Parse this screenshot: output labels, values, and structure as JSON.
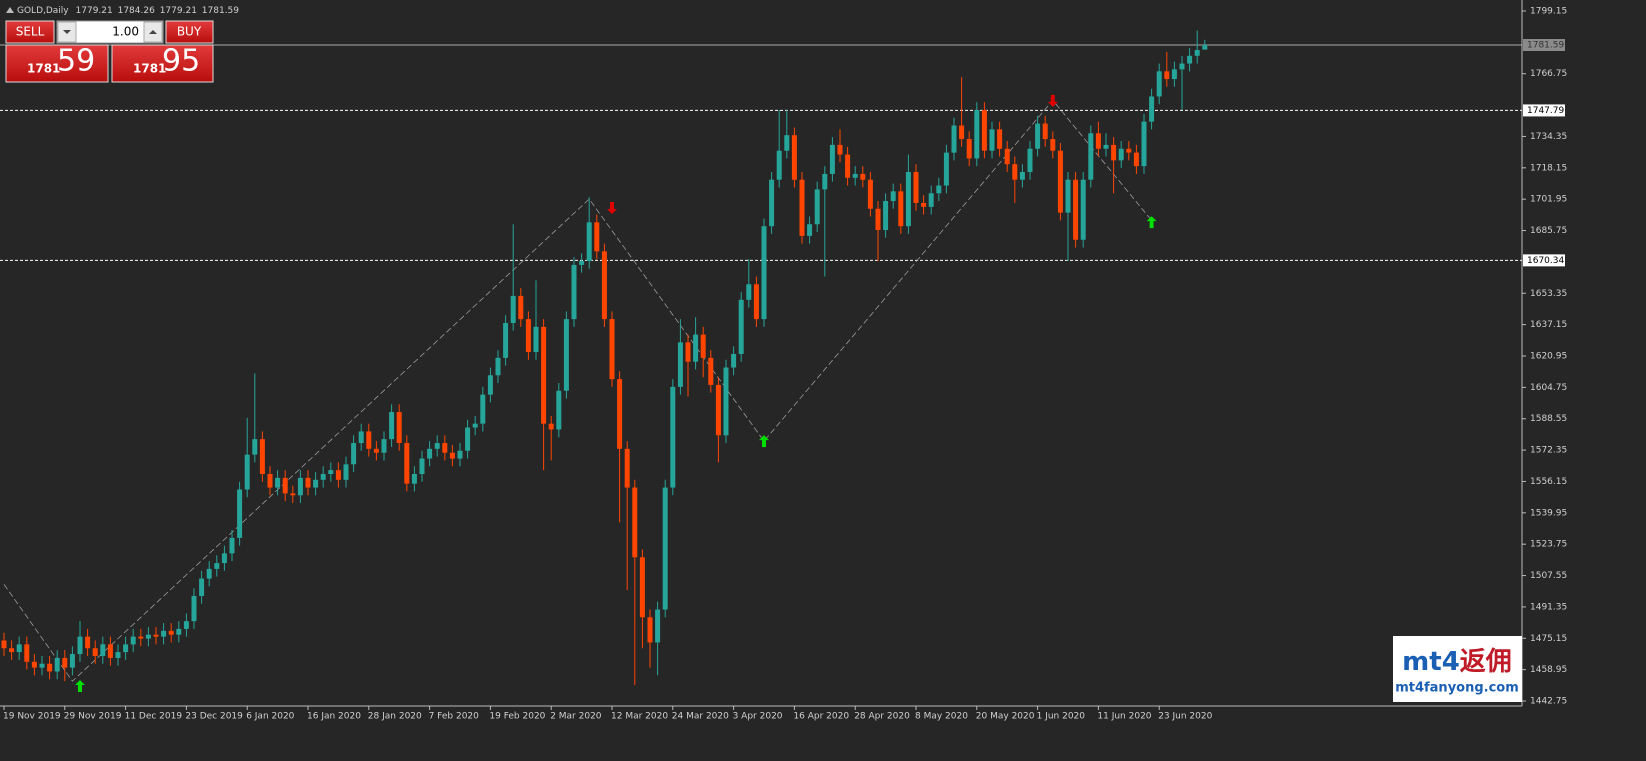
{
  "chart_data": {
    "type": "candlestick",
    "symbol": "GOLD,Daily",
    "up_color": "#26a69a",
    "down_color": "#ff4500",
    "ylim": [
      1440.17,
      1804.83
    ],
    "yticks": [
      1799.15,
      1766.75,
      1734.35,
      1718.15,
      1701.95,
      1685.75,
      1653.35,
      1637.15,
      1620.95,
      1604.75,
      1588.55,
      1572.35,
      1556.15,
      1539.95,
      1523.75,
      1507.55,
      1491.35,
      1475.15,
      1458.95,
      1442.75
    ],
    "categories": [
      "19 Nov 2019",
      null,
      null,
      null,
      null,
      null,
      null,
      null,
      "29 Nov 2019",
      null,
      null,
      null,
      null,
      null,
      null,
      null,
      "11 Dec 2019",
      null,
      null,
      null,
      null,
      null,
      null,
      null,
      "23 Dec 2019",
      null,
      null,
      null,
      null,
      null,
      null,
      null,
      "6 Jan 2020",
      null,
      null,
      null,
      null,
      null,
      null,
      null,
      "16 Jan 2020",
      null,
      null,
      null,
      null,
      null,
      null,
      null,
      "28 Jan 2020",
      null,
      null,
      null,
      null,
      null,
      null,
      null,
      "7 Feb 2020",
      null,
      null,
      null,
      null,
      null,
      null,
      null,
      "19 Feb 2020",
      null,
      null,
      null,
      null,
      null,
      null,
      null,
      "2 Mar 2020",
      null,
      null,
      null,
      null,
      null,
      null,
      null,
      "12 Mar 2020",
      null,
      null,
      null,
      null,
      null,
      null,
      null,
      "24 Mar 2020",
      null,
      null,
      null,
      null,
      null,
      null,
      null,
      "3 Apr 2020",
      null,
      null,
      null,
      null,
      null,
      null,
      null,
      "16 Apr 2020",
      null,
      null,
      null,
      null,
      null,
      null,
      null,
      "28 Apr 2020",
      null,
      null,
      null,
      null,
      null,
      null,
      null,
      "8 May 2020",
      null,
      null,
      null,
      null,
      null,
      null,
      null,
      "20 May 2020",
      null,
      null,
      null,
      null,
      null,
      null,
      null,
      "1 Jun 2020",
      null,
      null,
      null,
      null,
      null,
      null,
      null,
      "11 Jun 2020",
      null,
      null,
      null,
      null,
      null,
      null,
      null,
      "23 Jun 2020",
      null,
      null,
      null,
      null,
      null,
      null
    ],
    "candles": [
      [
        1474,
        1478,
        1466,
        1470
      ],
      [
        1470,
        1474,
        1464,
        1468
      ],
      [
        1468,
        1476,
        1464,
        1472
      ],
      [
        1472,
        1476,
        1459,
        1463
      ],
      [
        1463,
        1467,
        1456,
        1460
      ],
      [
        1460,
        1466,
        1456,
        1462
      ],
      [
        1462,
        1466,
        1454,
        1458
      ],
      [
        1458,
        1469,
        1454,
        1465
      ],
      [
        1465,
        1469,
        1453,
        1460
      ],
      [
        1460,
        1471,
        1456,
        1467
      ],
      [
        1467,
        1484,
        1463,
        1476
      ],
      [
        1476,
        1480,
        1466,
        1470
      ],
      [
        1470,
        1474,
        1462,
        1466
      ],
      [
        1466,
        1476,
        1462,
        1472
      ],
      [
        1472,
        1476,
        1461,
        1465
      ],
      [
        1465,
        1472,
        1461,
        1468
      ],
      [
        1468,
        1476,
        1464,
        1472
      ],
      [
        1472,
        1480,
        1468,
        1476
      ],
      [
        1476,
        1480,
        1471,
        1475
      ],
      [
        1475,
        1481,
        1471,
        1477
      ],
      [
        1477,
        1481,
        1472,
        1476
      ],
      [
        1476,
        1483,
        1472,
        1479
      ],
      [
        1479,
        1483,
        1473,
        1477
      ],
      [
        1477,
        1484,
        1473,
        1480
      ],
      [
        1480,
        1488,
        1476,
        1484
      ],
      [
        1484,
        1501,
        1480,
        1497
      ],
      [
        1497,
        1510,
        1493,
        1506
      ],
      [
        1506,
        1515,
        1502,
        1511
      ],
      [
        1511,
        1518,
        1507,
        1514
      ],
      [
        1514,
        1523,
        1510,
        1519
      ],
      [
        1519,
        1531,
        1515,
        1527
      ],
      [
        1527,
        1556,
        1523,
        1552
      ],
      [
        1552,
        1589,
        1548,
        1570
      ],
      [
        1570,
        1612,
        1566,
        1578
      ],
      [
        1578,
        1582,
        1556,
        1560
      ],
      [
        1560,
        1564,
        1549,
        1553
      ],
      [
        1553,
        1562,
        1549,
        1558
      ],
      [
        1558,
        1562,
        1546,
        1550
      ],
      [
        1550,
        1554,
        1545,
        1549
      ],
      [
        1549,
        1562,
        1545,
        1558
      ],
      [
        1558,
        1562,
        1549,
        1553
      ],
      [
        1553,
        1561,
        1549,
        1557
      ],
      [
        1557,
        1564,
        1553,
        1560
      ],
      [
        1560,
        1566,
        1556,
        1562
      ],
      [
        1562,
        1566,
        1553,
        1557
      ],
      [
        1557,
        1569,
        1553,
        1565
      ],
      [
        1565,
        1580,
        1561,
        1576
      ],
      [
        1576,
        1586,
        1572,
        1582
      ],
      [
        1582,
        1586,
        1569,
        1573
      ],
      [
        1573,
        1577,
        1567,
        1571
      ],
      [
        1571,
        1582,
        1567,
        1578
      ],
      [
        1578,
        1596,
        1574,
        1592
      ],
      [
        1592,
        1596,
        1572,
        1576
      ],
      [
        1576,
        1580,
        1551,
        1555
      ],
      [
        1555,
        1564,
        1551,
        1560
      ],
      [
        1560,
        1572,
        1556,
        1568
      ],
      [
        1568,
        1577,
        1564,
        1573
      ],
      [
        1573,
        1580,
        1569,
        1576
      ],
      [
        1576,
        1580,
        1567,
        1571
      ],
      [
        1571,
        1575,
        1564,
        1568
      ],
      [
        1568,
        1576,
        1564,
        1572
      ],
      [
        1572,
        1588,
        1568,
        1584
      ],
      [
        1584,
        1590,
        1580,
        1586
      ],
      [
        1586,
        1605,
        1582,
        1601
      ],
      [
        1601,
        1615,
        1597,
        1611
      ],
      [
        1611,
        1624,
        1607,
        1620
      ],
      [
        1620,
        1642,
        1616,
        1638
      ],
      [
        1638,
        1689,
        1634,
        1652
      ],
      [
        1652,
        1656,
        1636,
        1640
      ],
      [
        1640,
        1644,
        1619,
        1623
      ],
      [
        1623,
        1660,
        1619,
        1636
      ],
      [
        1636,
        1640,
        1562,
        1586
      ],
      [
        1586,
        1590,
        1567,
        1583
      ],
      [
        1583,
        1607,
        1579,
        1603
      ],
      [
        1603,
        1644,
        1599,
        1640
      ],
      [
        1640,
        1672,
        1636,
        1668
      ],
      [
        1668,
        1674,
        1664,
        1670
      ],
      [
        1670,
        1703,
        1666,
        1690
      ],
      [
        1690,
        1694,
        1671,
        1675
      ],
      [
        1675,
        1679,
        1636,
        1640
      ],
      [
        1640,
        1644,
        1605,
        1609
      ],
      [
        1609,
        1613,
        1535,
        1573
      ],
      [
        1573,
        1577,
        1500,
        1553
      ],
      [
        1553,
        1557,
        1451,
        1517
      ],
      [
        1517,
        1521,
        1470,
        1486
      ],
      [
        1486,
        1490,
        1460,
        1473
      ],
      [
        1473,
        1494,
        1456,
        1490
      ],
      [
        1490,
        1557,
        1486,
        1553
      ],
      [
        1553,
        1609,
        1549,
        1605
      ],
      [
        1605,
        1640,
        1601,
        1628
      ],
      [
        1628,
        1632,
        1600,
        1618
      ],
      [
        1618,
        1641,
        1614,
        1632
      ],
      [
        1632,
        1636,
        1610,
        1620
      ],
      [
        1620,
        1624,
        1602,
        1606
      ],
      [
        1606,
        1610,
        1566,
        1580
      ],
      [
        1580,
        1619,
        1576,
        1615
      ],
      [
        1615,
        1626,
        1611,
        1622
      ],
      [
        1622,
        1654,
        1618,
        1650
      ],
      [
        1650,
        1671,
        1646,
        1658
      ],
      [
        1658,
        1662,
        1636,
        1640
      ],
      [
        1640,
        1692,
        1636,
        1688
      ],
      [
        1688,
        1716,
        1684,
        1712
      ],
      [
        1712,
        1748,
        1708,
        1727
      ],
      [
        1727,
        1748,
        1723,
        1735
      ],
      [
        1735,
        1739,
        1708,
        1712
      ],
      [
        1712,
        1716,
        1679,
        1683
      ],
      [
        1683,
        1693,
        1679,
        1689
      ],
      [
        1689,
        1711,
        1685,
        1707
      ],
      [
        1707,
        1719,
        1662,
        1715
      ],
      [
        1715,
        1734,
        1711,
        1730
      ],
      [
        1730,
        1738,
        1721,
        1725
      ],
      [
        1725,
        1729,
        1709,
        1713
      ],
      [
        1713,
        1719,
        1709,
        1715
      ],
      [
        1715,
        1719,
        1708,
        1712
      ],
      [
        1712,
        1716,
        1693,
        1697
      ],
      [
        1697,
        1701,
        1670,
        1686
      ],
      [
        1686,
        1705,
        1682,
        1701
      ],
      [
        1701,
        1710,
        1697,
        1706
      ],
      [
        1706,
        1710,
        1684,
        1688
      ],
      [
        1688,
        1725,
        1684,
        1716
      ],
      [
        1716,
        1720,
        1696,
        1700
      ],
      [
        1700,
        1704,
        1694,
        1698
      ],
      [
        1698,
        1709,
        1694,
        1705
      ],
      [
        1705,
        1713,
        1701,
        1709
      ],
      [
        1709,
        1730,
        1705,
        1726
      ],
      [
        1726,
        1744,
        1722,
        1740
      ],
      [
        1740,
        1765,
        1729,
        1733
      ],
      [
        1733,
        1737,
        1719,
        1723
      ],
      [
        1723,
        1752,
        1719,
        1748
      ],
      [
        1748,
        1752,
        1723,
        1727
      ],
      [
        1727,
        1742,
        1723,
        1738
      ],
      [
        1738,
        1742,
        1724,
        1728
      ],
      [
        1728,
        1732,
        1716,
        1720
      ],
      [
        1720,
        1724,
        1700,
        1712
      ],
      [
        1712,
        1720,
        1708,
        1716
      ],
      [
        1716,
        1732,
        1712,
        1728
      ],
      [
        1728,
        1745,
        1724,
        1741
      ],
      [
        1741,
        1745,
        1729,
        1733
      ],
      [
        1733,
        1737,
        1723,
        1727
      ],
      [
        1727,
        1731,
        1691,
        1695
      ],
      [
        1695,
        1716,
        1670,
        1712
      ],
      [
        1712,
        1716,
        1677,
        1681
      ],
      [
        1681,
        1716,
        1677,
        1712
      ],
      [
        1712,
        1740,
        1708,
        1736
      ],
      [
        1736,
        1742,
        1724,
        1728
      ],
      [
        1728,
        1736,
        1724,
        1730
      ],
      [
        1730,
        1734,
        1705,
        1722
      ],
      [
        1722,
        1732,
        1718,
        1728
      ],
      [
        1728,
        1732,
        1722,
        1726
      ],
      [
        1726,
        1730,
        1715,
        1719
      ],
      [
        1719,
        1746,
        1715,
        1742
      ],
      [
        1742,
        1759,
        1738,
        1755
      ],
      [
        1755,
        1772,
        1751,
        1768
      ],
      [
        1768,
        1778,
        1760,
        1764
      ],
      [
        1764,
        1773,
        1760,
        1769
      ],
      [
        1769,
        1776,
        1748,
        1772
      ],
      [
        1772,
        1780,
        1768,
        1776
      ],
      [
        1776,
        1789,
        1772,
        1779
      ],
      [
        1779.21,
        1784.26,
        1779.21,
        1781.59
      ]
    ],
    "hlines": [
      {
        "value": 1781.59,
        "style": "solid"
      },
      {
        "value": 1747.79,
        "style": "dashed"
      },
      {
        "value": 1670.34,
        "style": "dashed"
      }
    ],
    "zigzag": {
      "x": [
        0,
        9,
        77,
        100,
        138,
        151
      ],
      "values": [
        1503,
        1453,
        1702,
        1577,
        1753,
        1691
      ]
    },
    "arrows": [
      {
        "x": 10,
        "value": 1450.5,
        "direction": "up"
      },
      {
        "x": 80,
        "value": 1697.4,
        "direction": "down"
      },
      {
        "x": 100,
        "value": 1577,
        "direction": "up"
      },
      {
        "x": 138,
        "value": 1752.7,
        "direction": "down"
      },
      {
        "x": 151,
        "value": 1690.1,
        "direction": "up"
      }
    ]
  },
  "trade_panel": {
    "sell": "SELL",
    "buy": "BUY",
    "lots": "1.00",
    "bid": {
      "big": "1781",
      "small": "59"
    },
    "ask": {
      "big": "1781",
      "small": "95"
    }
  },
  "watermark": {
    "brand_latin": "mt4",
    "brand_cn": "返佣",
    "url": "mt4fanyong.com"
  }
}
